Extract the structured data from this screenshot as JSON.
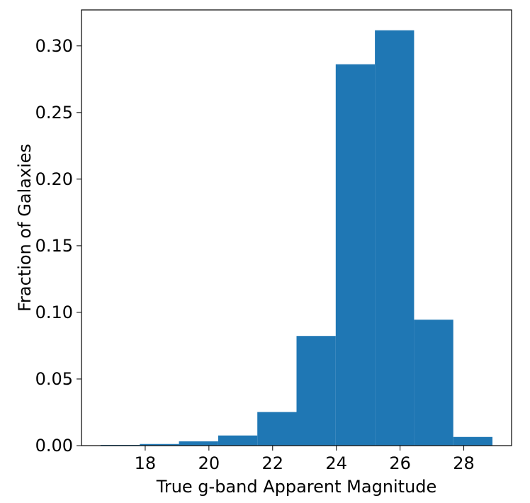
{
  "chart_data": {
    "type": "bar",
    "title": "",
    "xlabel": "True g-band Apparent Magnitude",
    "ylabel": "Fraction of Galaxies",
    "bin_edges": [
      16.6,
      17.83,
      19.06,
      20.29,
      21.52,
      22.75,
      23.98,
      25.21,
      26.44,
      27.67,
      28.9
    ],
    "values": [
      0.0005,
      0.0012,
      0.0032,
      0.0076,
      0.0252,
      0.0823,
      0.2862,
      0.3117,
      0.0945,
      0.0065
    ],
    "xlim": [
      16.0,
      29.5
    ],
    "ylim": [
      0,
      0.327
    ],
    "xticks": [
      18,
      20,
      22,
      24,
      26,
      28
    ],
    "xtick_labels": [
      "18",
      "20",
      "22",
      "24",
      "26",
      "28"
    ],
    "yticks": [
      0.0,
      0.05,
      0.1,
      0.15,
      0.2,
      0.25,
      0.3
    ],
    "ytick_labels": [
      "0.00",
      "0.05",
      "0.10",
      "0.15",
      "0.20",
      "0.25",
      "0.30"
    ],
    "bar_color": "#1f77b4",
    "grid": false,
    "legend": "none"
  }
}
